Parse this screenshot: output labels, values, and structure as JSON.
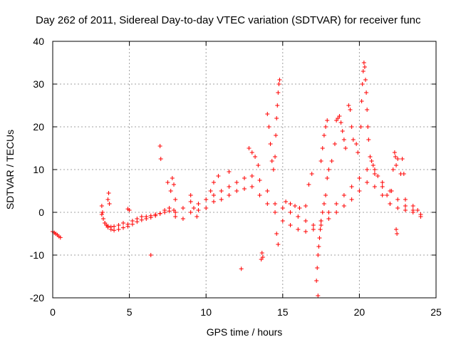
{
  "chart_data": {
    "type": "scatter",
    "title": "Day 262 of 2011, Sidereal Day-to-day VTEC variation (SDTVAR) for receiver func",
    "xlabel": "GPS time / hours",
    "ylabel": "SDTVAR / TECUs",
    "xlim": [
      0,
      25
    ],
    "ylim": [
      -20,
      40
    ],
    "xticks": [
      0,
      5,
      10,
      15,
      20,
      25
    ],
    "yticks": [
      -20,
      -10,
      0,
      10,
      20,
      30,
      40
    ],
    "grid": true,
    "marker": "+",
    "color": "#ff0000",
    "series": [
      {
        "name": "SDTVAR",
        "x": [
          0.0,
          0.1,
          0.2,
          0.3,
          0.4,
          0.5,
          3.2,
          3.25,
          3.3,
          3.4,
          3.5,
          3.6,
          3.8,
          4.0,
          4.3,
          4.6,
          4.9,
          5.2,
          5.5,
          5.8,
          6.1,
          6.4,
          6.7,
          7.0,
          7.3,
          7.6,
          7.9,
          3.2,
          3.3,
          3.4,
          3.6,
          3.8,
          4.0,
          4.3,
          4.6,
          4.9,
          5.2,
          5.5,
          5.8,
          6.1,
          6.4,
          6.7,
          7.0,
          7.3,
          7.6,
          3.6,
          3.65,
          3.7,
          4.9,
          5.0,
          6.4,
          7.0,
          7.05,
          7.5,
          7.7,
          7.8,
          7.9,
          8.0,
          8.0,
          8.5,
          9.0,
          9.5,
          10.0,
          10.5,
          11.0,
          11.5,
          12.0,
          12.5,
          13.0,
          13.5,
          14.0,
          14.5,
          15.0,
          15.5,
          16.0,
          16.5,
          17.0,
          17.5,
          18.0,
          18.5,
          19.0,
          19.5,
          20.0,
          20.5,
          21.0,
          21.5,
          22.0,
          22.5,
          23.0,
          23.5,
          24.0,
          8.0,
          8.5,
          9.0,
          9.5,
          10.0,
          10.5,
          11.0,
          11.5,
          12.0,
          12.5,
          13.0,
          13.5,
          14.0,
          14.5,
          15.0,
          15.5,
          16.0,
          16.5,
          17.0,
          17.5,
          18.0,
          18.5,
          19.0,
          19.5,
          20.0,
          20.5,
          21.0,
          21.5,
          22.0,
          22.5,
          23.0,
          23.5,
          24.0,
          9.0,
          9.2,
          9.4,
          10.3,
          10.5,
          10.8,
          11.5,
          12.3,
          12.8,
          13.0,
          13.2,
          13.4,
          13.6,
          13.65,
          13.7,
          14.0,
          14.1,
          14.2,
          14.3,
          14.4,
          14.5,
          14.55,
          14.6,
          14.65,
          14.7,
          14.75,
          14.8,
          14.6,
          14.7,
          15.2,
          15.5,
          15.8,
          16.1,
          16.5,
          16.7,
          16.9,
          17.2,
          17.25,
          17.3,
          17.35,
          17.4,
          17.45,
          17.5,
          17.6,
          17.7,
          17.8,
          17.9,
          18.0,
          17.3,
          17.5,
          17.6,
          17.7,
          17.8,
          17.9,
          18.2,
          18.4,
          18.5,
          18.6,
          18.7,
          18.8,
          18.9,
          19.0,
          19.1,
          19.3,
          19.4,
          19.5,
          19.6,
          19.8,
          19.9,
          20.1,
          20.15,
          20.2,
          20.25,
          20.3,
          20.35,
          20.4,
          20.45,
          20.5,
          20.55,
          20.6,
          20.7,
          20.8,
          20.9,
          21.0,
          21.2,
          21.5,
          21.8,
          22.0,
          22.1,
          22.2,
          22.3,
          22.35,
          22.4,
          22.5,
          22.7,
          22.8,
          22.9,
          23.0,
          22.4,
          22.45,
          23.5,
          23.8,
          24.0
        ],
        "y": [
          -4.5,
          -4.8,
          -5.0,
          -5.3,
          -5.6,
          -5.9,
          1.5,
          0.0,
          -1.5,
          -2.5,
          -3.0,
          -3.2,
          -3.4,
          -3.3,
          -3.0,
          -2.5,
          -2.8,
          -2.0,
          -1.5,
          -1.0,
          -1.0,
          -0.8,
          -0.5,
          -0.3,
          0.0,
          0.3,
          0.5,
          -0.5,
          -1.5,
          -2.5,
          -3.5,
          -4.0,
          -4.2,
          -4.0,
          -3.6,
          -3.3,
          -2.8,
          -2.2,
          -1.8,
          -1.5,
          -1.2,
          -0.8,
          -0.3,
          0.5,
          1.0,
          3.0,
          4.5,
          2.0,
          0.8,
          0.5,
          -10.0,
          15.5,
          12.5,
          7.0,
          5.0,
          8.0,
          6.5,
          3.0,
          0.0,
          1.0,
          2.5,
          2.0,
          3.0,
          4.0,
          5.0,
          6.0,
          7.0,
          8.0,
          8.5,
          7.5,
          5.0,
          2.0,
          1.0,
          0.0,
          -1.0,
          -2.0,
          -3.0,
          -2.0,
          0.0,
          2.0,
          4.0,
          6.0,
          8.0,
          10.0,
          9.0,
          7.0,
          5.0,
          3.0,
          1.5,
          0.5,
          -0.5,
          -1.0,
          -1.5,
          0.0,
          0.5,
          1.0,
          2.5,
          3.0,
          4.0,
          5.0,
          5.5,
          6.0,
          4.0,
          2.0,
          0.0,
          -2.0,
          -3.0,
          -4.0,
          -4.5,
          -4.0,
          -3.0,
          -1.5,
          0.0,
          1.5,
          3.0,
          5.0,
          7.0,
          6.0,
          4.0,
          2.0,
          1.0,
          0.5,
          0.0,
          -1.0,
          4.0,
          1.0,
          -1.0,
          5.0,
          7.0,
          8.5,
          9.5,
          -13.2,
          15.0,
          14.0,
          13.0,
          11.0,
          -11.0,
          -9.5,
          -10.5,
          23.0,
          20.0,
          16.0,
          12.0,
          10.0,
          13.0,
          18.0,
          22.0,
          25.0,
          28.0,
          30.0,
          31.0,
          -5.0,
          -7.5,
          2.5,
          2.0,
          1.5,
          1.0,
          1.5,
          6.5,
          9.0,
          -16.0,
          -13.0,
          -10.0,
          -8.0,
          -6.0,
          -4.0,
          -2.0,
          0.0,
          2.0,
          4.0,
          8.0,
          10.0,
          -19.5,
          12.0,
          15.0,
          18.0,
          20.0,
          21.5,
          12.0,
          16.0,
          21.5,
          22.0,
          22.5,
          21.0,
          19.0,
          17.0,
          15.0,
          25.0,
          24.0,
          20.0,
          17.0,
          16.0,
          14.0,
          20.0,
          26.0,
          30.0,
          33.0,
          35.0,
          34.0,
          31.0,
          28.0,
          24.0,
          20.0,
          17.0,
          13.0,
          12.0,
          11.0,
          10.0,
          8.5,
          6.0,
          4.0,
          2.0,
          5.0,
          10.0,
          14.0,
          13.0,
          11.0,
          12.5,
          9.0,
          12.5,
          9.0,
          3.0,
          -4.0,
          -5.0,
          1.5,
          0.5,
          -0.5
        ]
      }
    ]
  }
}
